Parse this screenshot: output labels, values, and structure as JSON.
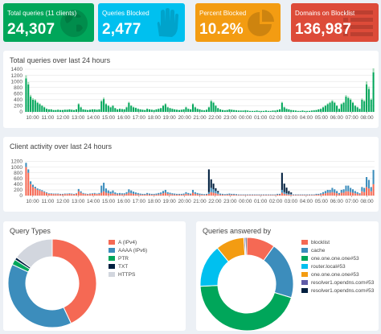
{
  "stats": {
    "total": {
      "label": "Total queries (11 clients)",
      "value": "24,307",
      "color": "#00a65a",
      "icon": "globe-icon"
    },
    "blocked": {
      "label": "Queries Blocked",
      "value": "2,477",
      "color": "#00c0ef",
      "icon": "hand-icon"
    },
    "percent": {
      "label": "Percent Blocked",
      "value": "10.2%",
      "color": "#f39c12",
      "icon": "pie-chart-icon"
    },
    "domains": {
      "label": "Domains on Blocklist",
      "value": "136,987",
      "color": "#dd4b39",
      "icon": "list-icon"
    }
  },
  "panels": {
    "total_queries": {
      "title": "Total queries over last 24 hours"
    },
    "client_activity": {
      "title": "Client activity over last 24 hours"
    },
    "query_types": {
      "title": "Query Types"
    },
    "answered_by": {
      "title": "Queries answered by"
    }
  },
  "chart_data": [
    {
      "type": "bar",
      "title": "Total queries over last 24 hours",
      "x_ticks": [
        "10:00",
        "11:00",
        "12:00",
        "13:00",
        "14:00",
        "15:00",
        "16:00",
        "17:00",
        "18:00",
        "19:00",
        "20:00",
        "21:00",
        "22:00",
        "23:00",
        "00:00",
        "01:00",
        "02:00",
        "03:00",
        "04:00",
        "05:00",
        "06:00",
        "07:00",
        "08:00"
      ],
      "y_ticks": [
        0,
        200,
        400,
        600,
        800,
        1000,
        1200,
        1400
      ],
      "ylim": [
        0,
        1400
      ],
      "grid": true,
      "series": [
        {
          "color": "#00a65a",
          "values": [
            1100,
            900,
            500,
            400,
            380,
            300,
            250,
            200,
            150,
            100,
            80,
            80,
            60,
            60,
            70,
            60,
            60,
            70,
            70,
            80,
            70,
            60,
            80,
            250,
            150,
            80,
            70,
            60,
            70,
            80,
            80,
            70,
            80,
            350,
            420,
            250,
            200,
            150,
            200,
            120,
            80,
            100,
            90,
            80,
            150,
            300,
            200,
            150,
            130,
            100,
            80,
            70,
            60,
            100,
            80,
            70,
            60,
            80,
            100,
            120,
            200,
            250,
            150,
            120,
            100,
            80,
            70,
            60,
            70,
            80,
            150,
            100,
            80,
            250,
            150,
            100,
            80,
            60,
            50,
            70,
            150,
            350,
            300,
            200,
            120,
            80,
            60,
            50,
            60,
            80,
            70,
            60,
            50,
            40,
            40,
            40,
            50,
            40,
            30,
            30,
            30,
            40,
            30,
            30,
            30,
            40,
            30,
            30,
            40,
            40,
            60,
            80,
            300,
            150,
            100,
            80,
            60,
            50,
            40,
            30,
            30,
            40,
            30,
            30,
            30,
            40,
            50,
            60,
            80,
            100,
            150,
            200,
            250,
            300,
            350,
            300,
            200,
            100,
            250,
            300,
            500,
            450,
            400,
            300,
            200,
            150,
            100,
            400,
            350,
            900,
            750,
            400,
            1300
          ]
        },
        {
          "color": "#9fdab5",
          "values": [
            100,
            80,
            60,
            50,
            40,
            30,
            30,
            20,
            20,
            10,
            10,
            10,
            10,
            10,
            10,
            10,
            10,
            10,
            10,
            10,
            10,
            10,
            10,
            30,
            20,
            10,
            10,
            10,
            10,
            10,
            10,
            10,
            10,
            40,
            50,
            30,
            20,
            20,
            20,
            10,
            10,
            10,
            10,
            10,
            20,
            30,
            20,
            20,
            10,
            10,
            10,
            10,
            10,
            10,
            10,
            10,
            10,
            10,
            10,
            10,
            20,
            30,
            20,
            10,
            10,
            10,
            10,
            10,
            10,
            10,
            20,
            10,
            10,
            30,
            20,
            10,
            10,
            10,
            10,
            10,
            20,
            40,
            30,
            20,
            10,
            10,
            10,
            10,
            10,
            10,
            10,
            10,
            10,
            10,
            10,
            10,
            10,
            10,
            10,
            10,
            10,
            10,
            10,
            10,
            10,
            10,
            10,
            10,
            10,
            10,
            10,
            10,
            30,
            20,
            10,
            10,
            10,
            10,
            10,
            10,
            10,
            10,
            10,
            10,
            10,
            10,
            10,
            10,
            10,
            10,
            20,
            20,
            30,
            30,
            40,
            30,
            20,
            10,
            30,
            30,
            50,
            50,
            40,
            30,
            20,
            20,
            10,
            40,
            40,
            100,
            80,
            40,
            130
          ]
        }
      ]
    },
    {
      "type": "bar",
      "title": "Client activity over last 24 hours",
      "x_ticks": [
        "10:00",
        "11:00",
        "12:00",
        "13:00",
        "14:00",
        "15:00",
        "16:00",
        "17:00",
        "18:00",
        "19:00",
        "20:00",
        "21:00",
        "22:00",
        "23:00",
        "00:00",
        "01:00",
        "02:00",
        "03:00",
        "04:00",
        "05:00",
        "06:00",
        "07:00",
        "08:00"
      ],
      "y_ticks": [
        0,
        200,
        400,
        600,
        800,
        1000,
        1200
      ],
      "ylim": [
        0,
        1300
      ],
      "grid": true,
      "series": [
        {
          "color": "#f56954",
          "values": [
            1000,
            800,
            400,
            300,
            250,
            200,
            180,
            150,
            120,
            80,
            60,
            60,
            50,
            50,
            50,
            40,
            40,
            50,
            50,
            60,
            50,
            40,
            60,
            150,
            100,
            60,
            50,
            40,
            50,
            60,
            60,
            50,
            60,
            100,
            150,
            100,
            80,
            60,
            80,
            50,
            40,
            40,
            40,
            40,
            60,
            100,
            80,
            60,
            50,
            40,
            30,
            30,
            30,
            40,
            30,
            30,
            30,
            30,
            40,
            50,
            80,
            100,
            60,
            50,
            40,
            30,
            30,
            30,
            30,
            30,
            60,
            40,
            30,
            100,
            60,
            40,
            30,
            30,
            20,
            30,
            60,
            120,
            100,
            80,
            50,
            30,
            30,
            20,
            30,
            30,
            30,
            30,
            20,
            20,
            20,
            20,
            20,
            20,
            20,
            20,
            20,
            20,
            20,
            20,
            20,
            20,
            20,
            20,
            20,
            20,
            30,
            30,
            100,
            60,
            40,
            30,
            30,
            20,
            20,
            20,
            20,
            20,
            20,
            20,
            20,
            20,
            20,
            30,
            30,
            40,
            60,
            80,
            100,
            100,
            120,
            100,
            80,
            40,
            100,
            100,
            150,
            150,
            120,
            100,
            80,
            60,
            40,
            150,
            120,
            300,
            250,
            150,
            400
          ]
        },
        {
          "color": "#3c8dbc",
          "values": [
            150,
            120,
            100,
            80,
            60,
            50,
            40,
            40,
            30,
            30,
            20,
            20,
            20,
            20,
            20,
            20,
            20,
            20,
            20,
            20,
            20,
            20,
            20,
            80,
            50,
            30,
            20,
            20,
            20,
            20,
            30,
            20,
            30,
            250,
            300,
            150,
            100,
            80,
            100,
            60,
            40,
            50,
            40,
            40,
            60,
            120,
            100,
            80,
            60,
            50,
            40,
            30,
            30,
            50,
            40,
            30,
            30,
            40,
            50,
            60,
            80,
            100,
            60,
            50,
            40,
            40,
            30,
            30,
            30,
            40,
            60,
            50,
            40,
            100,
            60,
            50,
            40,
            30,
            30,
            30,
            60,
            150,
            120,
            80,
            60,
            40,
            30,
            30,
            30,
            40,
            30,
            30,
            30,
            20,
            20,
            20,
            20,
            20,
            20,
            20,
            20,
            20,
            20,
            20,
            20,
            20,
            20,
            20,
            20,
            20,
            30,
            30,
            100,
            60,
            40,
            30,
            30,
            20,
            20,
            20,
            20,
            20,
            20,
            20,
            20,
            20,
            20,
            30,
            30,
            40,
            60,
            80,
            100,
            100,
            150,
            120,
            80,
            50,
            100,
            120,
            200,
            200,
            150,
            120,
            80,
            60,
            40,
            150,
            150,
            350,
            300,
            150,
            500
          ]
        },
        {
          "color": "#001f3f",
          "values": [
            0,
            0,
            0,
            0,
            0,
            0,
            0,
            0,
            0,
            0,
            0,
            0,
            0,
            0,
            0,
            0,
            0,
            0,
            0,
            0,
            0,
            0,
            0,
            0,
            0,
            0,
            0,
            0,
            0,
            0,
            0,
            0,
            0,
            0,
            0,
            0,
            0,
            0,
            0,
            0,
            0,
            0,
            0,
            0,
            0,
            0,
            0,
            0,
            0,
            0,
            0,
            0,
            0,
            0,
            0,
            0,
            0,
            0,
            0,
            0,
            0,
            0,
            0,
            0,
            0,
            0,
            0,
            0,
            0,
            0,
            0,
            0,
            0,
            0,
            0,
            0,
            0,
            0,
            0,
            0,
            800,
            300,
            200,
            100,
            50,
            0,
            0,
            0,
            0,
            0,
            0,
            0,
            0,
            0,
            0,
            0,
            0,
            0,
            0,
            0,
            0,
            0,
            0,
            0,
            0,
            0,
            0,
            0,
            0,
            0,
            0,
            0,
            600,
            300,
            200,
            100,
            50,
            0,
            0,
            0,
            0,
            0,
            0,
            0,
            0,
            0,
            0,
            0,
            0,
            0,
            0,
            0,
            0,
            0,
            0,
            0,
            0,
            0,
            0,
            0,
            0,
            0,
            0,
            0,
            0,
            0,
            0,
            0,
            0,
            0,
            0,
            0,
            0,
            0,
            300
          ]
        }
      ]
    },
    {
      "type": "pie",
      "title": "Query Types",
      "donut": true,
      "legend_position": "right",
      "categories": [
        "A (IPv4)",
        "AAAA (IPv6)",
        "PTR",
        "TXT",
        "HTTPS"
      ],
      "colors": [
        "#f56954",
        "#3c8dbc",
        "#00a65a",
        "#001f3f",
        "#d2d6de"
      ],
      "values": [
        43,
        39,
        2,
        1,
        15
      ]
    },
    {
      "type": "pie",
      "title": "Queries answered by",
      "donut": true,
      "legend_position": "right",
      "categories": [
        "blocklist",
        "cache",
        "one.one.one.one#53",
        "router.local#53",
        "one.one.one.one#53",
        "resolver1.opendns.com#53",
        "resolver1.opendns.com#53"
      ],
      "colors": [
        "#f56954",
        "#3c8dbc",
        "#00a65a",
        "#00c0ef",
        "#f39c12",
        "#605ca8",
        "#001f3f"
      ],
      "values": [
        10,
        20,
        45,
        15,
        10,
        0.5,
        0.5
      ]
    }
  ]
}
